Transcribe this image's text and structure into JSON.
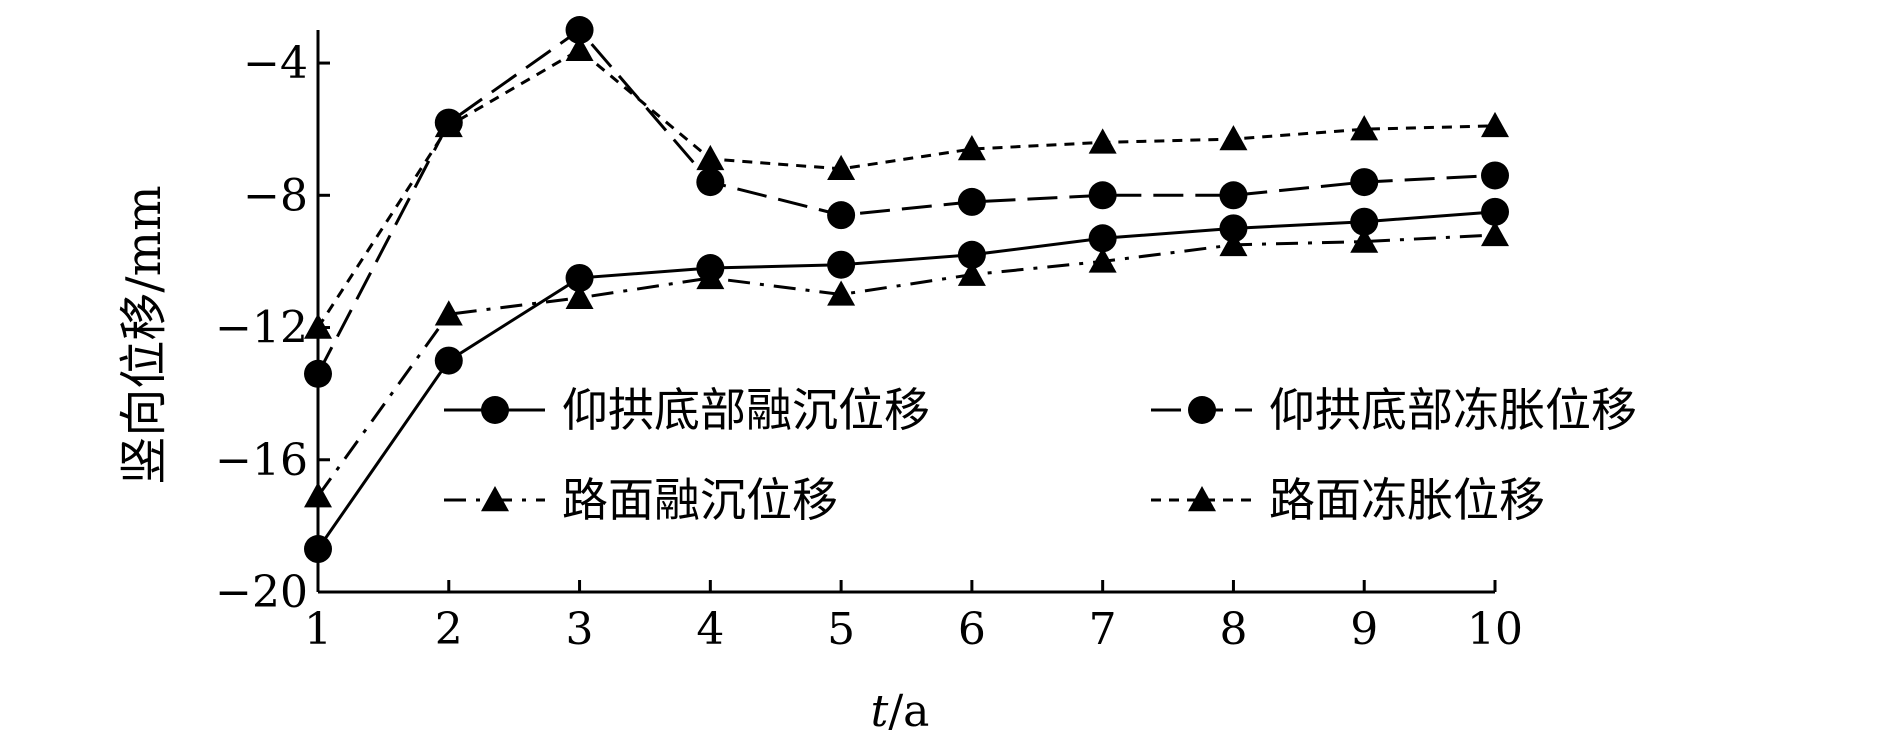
{
  "chart_data": {
    "type": "line",
    "xlabel_italic": "t",
    "xlabel_rest": "/a",
    "ylabel": "竖向位移/mm",
    "x": [
      1,
      2,
      3,
      4,
      5,
      6,
      7,
      8,
      9,
      10
    ],
    "xlim": [
      1,
      10
    ],
    "ylim": [
      -20,
      -3
    ],
    "yticks": [
      -20,
      -16,
      -12,
      -8,
      -4
    ],
    "xticks": [
      1,
      2,
      3,
      4,
      5,
      6,
      7,
      8,
      9,
      10
    ],
    "grid": false,
    "legend_position": "center-right",
    "series": [
      {
        "name": "仰拱底部融沉位移",
        "marker": "circle",
        "line_style": "solid",
        "values": [
          -18.7,
          -13.0,
          -10.5,
          -10.2,
          -10.1,
          -9.8,
          -9.3,
          -9.0,
          -8.8,
          -8.5
        ]
      },
      {
        "name": "仰拱底部冻胀位移",
        "marker": "circle",
        "line_style": "long-dash",
        "values": [
          -13.4,
          -5.8,
          -3.0,
          -7.6,
          -8.6,
          -8.2,
          -8.0,
          -8.0,
          -7.6,
          -7.4
        ]
      },
      {
        "name": "路面融沉位移",
        "marker": "triangle",
        "line_style": "dash-dot",
        "values": [
          -17.1,
          -11.6,
          -11.1,
          -10.5,
          -11.0,
          -10.4,
          -10.0,
          -9.5,
          -9.4,
          -9.2
        ]
      },
      {
        "name": "路面冻胀位移",
        "marker": "triangle",
        "line_style": "short-dash",
        "values": [
          -12.0,
          -5.9,
          -3.6,
          -6.9,
          -7.2,
          -6.6,
          -6.4,
          -6.3,
          -6.0,
          -5.9
        ]
      }
    ]
  }
}
